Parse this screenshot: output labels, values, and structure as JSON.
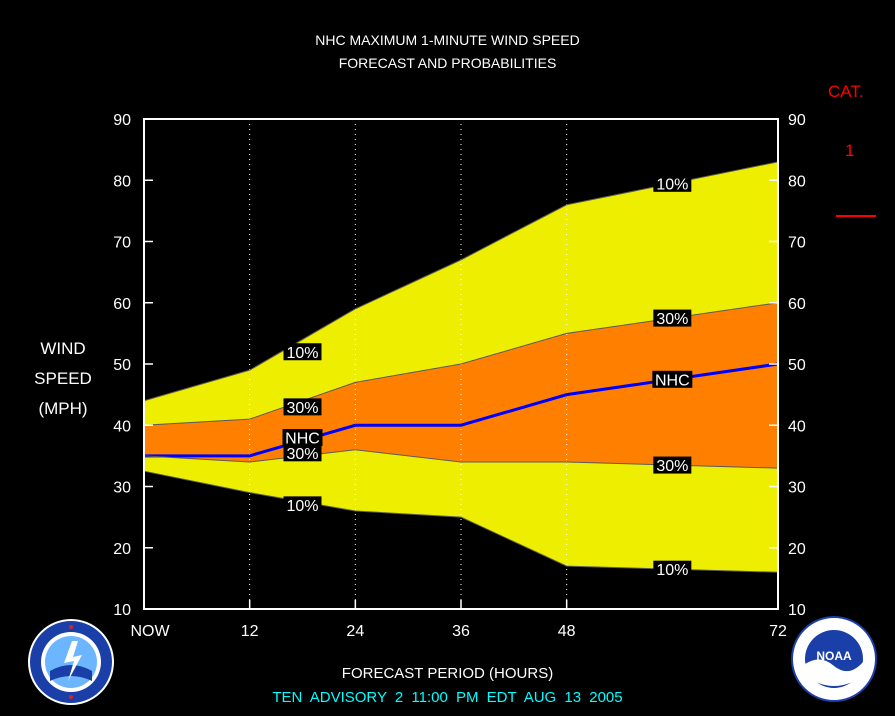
{
  "title_line1": "NHC MAXIMUM 1-MINUTE WIND SPEED",
  "title_line2": "FORECAST AND PROBABILITIES",
  "ylabel_lines": [
    "WIND",
    "SPEED",
    "(MPH)"
  ],
  "xlabel": "FORECAST PERIOD (HOURS)",
  "advisory": "TEN   ADVISORY  2  11:00  PM  EDT  AUG 13  2005",
  "category": {
    "label": "CAT.",
    "value": "1",
    "color": "#ff0000"
  },
  "logos": {
    "left": "nws-logo",
    "right": "noaa-logo",
    "right_text": "NOAA"
  },
  "colors": {
    "band_10": "#eeee00",
    "band_30": "#ff8000",
    "nhc_line": "#0000ff",
    "frame": "#ffffff",
    "background": "#000000"
  },
  "chart_data": {
    "type": "area",
    "x_ticks": [
      0,
      12,
      24,
      36,
      48,
      72
    ],
    "x_tick_labels": [
      "NOW",
      "12",
      "24",
      "36",
      "48",
      "72"
    ],
    "xlim": [
      0,
      72
    ],
    "ylim": [
      10,
      90
    ],
    "y_ticks": [
      10,
      20,
      30,
      40,
      50,
      60,
      70,
      80,
      90
    ],
    "grid": "dotted vertical at x ticks",
    "x": [
      0,
      12,
      24,
      36,
      48,
      72
    ],
    "series": [
      {
        "name": "10%",
        "role": "upper",
        "values": [
          44,
          49,
          59,
          67,
          76,
          83
        ]
      },
      {
        "name": "30%",
        "role": "upper",
        "values": [
          40,
          41,
          47,
          50,
          55,
          60
        ]
      },
      {
        "name": "NHC",
        "role": "forecast",
        "values": [
          35,
          35,
          40,
          40,
          45,
          50
        ]
      },
      {
        "name": "30%",
        "role": "lower",
        "values": [
          35,
          34,
          36,
          34,
          34,
          33
        ]
      },
      {
        "name": "10%",
        "role": "lower",
        "values": [
          32.5,
          29,
          26,
          25,
          17,
          16
        ]
      }
    ],
    "annotations": [
      {
        "text": "10%",
        "x": 60,
        "y": 79.5
      },
      {
        "text": "30%",
        "x": 60,
        "y": 57.5
      },
      {
        "text": "NHC",
        "x": 60,
        "y": 47.5
      },
      {
        "text": "30%",
        "x": 60,
        "y": 33.5
      },
      {
        "text": "10%",
        "x": 60,
        "y": 16.5
      },
      {
        "text": "10%",
        "x": 18,
        "y": 52
      },
      {
        "text": "30%",
        "x": 18,
        "y": 43
      },
      {
        "text": "NHC",
        "x": 18,
        "y": 38
      },
      {
        "text": "30%",
        "x": 18,
        "y": 35.5
      },
      {
        "text": "10%",
        "x": 18,
        "y": 27
      }
    ]
  }
}
